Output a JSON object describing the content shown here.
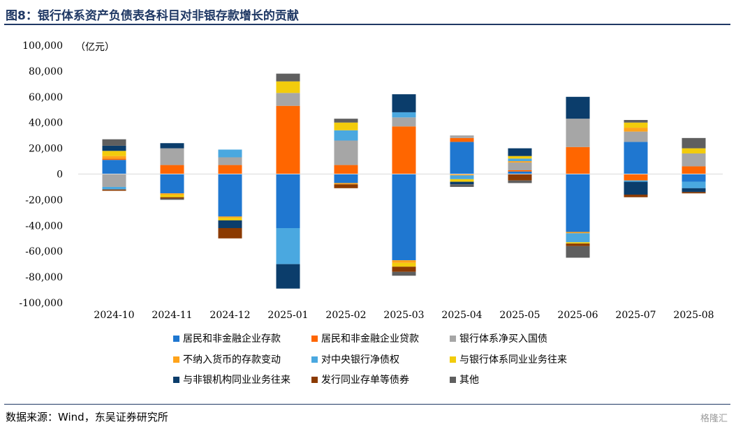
{
  "header": {
    "title": "图8：银行体系资产负债表各科目对非银存款增长的贡献"
  },
  "footer": {
    "source": "数据来源：Wind，东吴证券研究所",
    "watermark": "格隆汇"
  },
  "chart_data": {
    "type": "bar",
    "stacked": true,
    "unit_label": "（亿元）",
    "ylim": [
      -100000,
      100000
    ],
    "yticks": [
      -100000,
      -80000,
      -60000,
      -40000,
      -20000,
      0,
      20000,
      40000,
      60000,
      80000,
      100000
    ],
    "ytick_labels": [
      "-100,000",
      "-80,000",
      "-60,000",
      "-40,000",
      "-20,000",
      "0",
      "20,000",
      "40,000",
      "60,000",
      "80,000",
      "100,000"
    ],
    "grid": false,
    "legend_position": "bottom",
    "categories": [
      "2024-10",
      "2024-11",
      "2024-12",
      "2025-01",
      "2025-02",
      "2025-03",
      "2025-04",
      "2025-05",
      "2025-06",
      "2025-07",
      "2025-08"
    ],
    "series": [
      {
        "name": "居民和非金融企业存款",
        "color": "#1f77d0",
        "values": [
          11000,
          -15000,
          -33000,
          -42000,
          -7000,
          -67000,
          25000,
          2000,
          -45000,
          25000,
          -6000
        ]
      },
      {
        "name": "居民和非金融企业贷款",
        "color": "#ff6600",
        "values": [
          1000,
          7000,
          7000,
          53000,
          7000,
          37000,
          3000,
          1000,
          21000,
          -5000,
          6000
        ]
      },
      {
        "name": "银行体系净买入国债",
        "color": "#a6a6a6",
        "values": [
          -10000,
          13000,
          6000,
          10000,
          19000,
          7000,
          2000,
          6000,
          22000,
          8000,
          10000
        ]
      },
      {
        "name": "不纳入货币的存款变动",
        "color": "#ffa31a",
        "values": [
          2000,
          -1000,
          -1000,
          0,
          -1000,
          -2000,
          -1000,
          1000,
          -1000,
          3000,
          0
        ]
      },
      {
        "name": "对中央银行净债权",
        "color": "#4aa8e0",
        "values": [
          -2000,
          0,
          6000,
          -28000,
          8000,
          4000,
          -3000,
          2000,
          -7000,
          -1000,
          -5000
        ]
      },
      {
        "name": "与银行体系同业业务往来",
        "color": "#f2cc0c",
        "values": [
          4000,
          -2000,
          -2000,
          9000,
          6000,
          -3000,
          -2000,
          2000,
          -1000,
          4000,
          4000
        ]
      },
      {
        "name": "与非银机构同业业务往来",
        "color": "#0b3d6b",
        "values": [
          4000,
          4000,
          -6000,
          -19000,
          0,
          14000,
          -2000,
          6000,
          17000,
          -10000,
          -3000
        ]
      },
      {
        "name": "发行同业存单等债券",
        "color": "#8b3a00",
        "values": [
          -1000,
          -1000,
          -8000,
          0,
          -3000,
          -4000,
          0,
          -5000,
          -2000,
          -2000,
          -1000
        ]
      },
      {
        "name": "其他",
        "color": "#5f5f5f",
        "values": [
          5000,
          -1000,
          0,
          6000,
          3000,
          -3000,
          -2000,
          -2000,
          -9000,
          2000,
          8000
        ]
      }
    ]
  }
}
